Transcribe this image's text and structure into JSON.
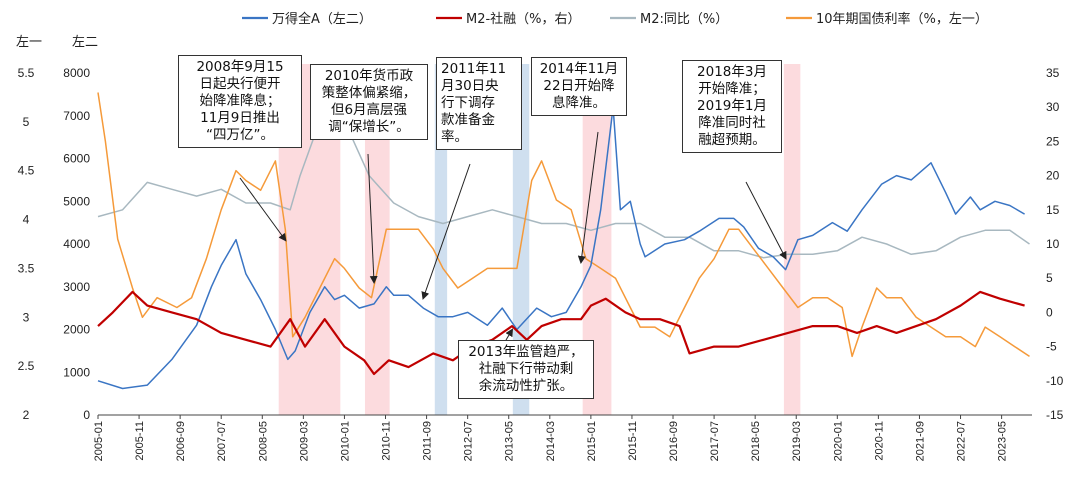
{
  "chart_data": {
    "type": "line",
    "axis_corner_labels": {
      "left_outer": "左一",
      "left_inner": "左二"
    },
    "left1_axis": {
      "ticks": [
        "2",
        "2.5",
        "3",
        "3.5",
        "4",
        "4.5",
        "5",
        "5.5"
      ],
      "ylim": [
        2,
        5.5
      ]
    },
    "left2_axis": {
      "ticks": [
        "0",
        "1000",
        "2000",
        "3000",
        "4000",
        "5000",
        "6000",
        "7000",
        "8000"
      ],
      "ylim": [
        0,
        8000
      ]
    },
    "right_axis": {
      "ticks": [
        "-15",
        "-10",
        "-5",
        "0",
        "5",
        "10",
        "15",
        "20",
        "25",
        "30",
        "35"
      ],
      "ylim": [
        -15,
        35
      ]
    },
    "x_tick_labels": [
      "2005-01",
      "2005-11",
      "2006-09",
      "2007-07",
      "2008-05",
      "2009-03",
      "2010-01",
      "2010-11",
      "2011-09",
      "2012-07",
      "2013-05",
      "2014-03",
      "2015-01",
      "2015-11",
      "2016-09",
      "2017-07",
      "2018-05",
      "2019-03",
      "2020-01",
      "2020-11",
      "2021-09",
      "2022-07",
      "2023-05"
    ],
    "legend": [
      {
        "label": "万得全A（左二）",
        "color": "#3a75c4"
      },
      {
        "label": "M2-社融（%，右）",
        "color": "#c00000"
      },
      {
        "label": "M2:同比（%）",
        "color": "#a8b8c0"
      },
      {
        "label": "10年期国债利率（%，左一）",
        "color": "#f59a3a"
      }
    ],
    "shaded_periods": [
      {
        "start": "2008-09",
        "end": "2009-12",
        "kind": "easing",
        "color": "#fbd5d8"
      },
      {
        "start": "2010-06",
        "end": "2010-12",
        "kind": "easing",
        "color": "#fbd5d8"
      },
      {
        "start": "2011-11",
        "end": "2012-02",
        "kind": "rrr_cut",
        "color": "#c7d9ec"
      },
      {
        "start": "2013-06",
        "end": "2013-10",
        "kind": "rrr_cut",
        "color": "#c7d9ec"
      },
      {
        "start": "2014-11",
        "end": "2015-06",
        "kind": "easing",
        "color": "#fbd5d8"
      },
      {
        "start": "2018-12",
        "end": "2019-04",
        "kind": "easing",
        "color": "#fbd5d8"
      }
    ],
    "series": [
      {
        "name": "万得全A（左二）",
        "axis": "left2",
        "x": [
          2005.0,
          2005.5,
          2006.0,
          2006.5,
          2007.0,
          2007.3,
          2007.5,
          2007.8,
          2008.0,
          2008.3,
          2008.6,
          2008.85,
          2009.0,
          2009.3,
          2009.6,
          2009.8,
          2010.0,
          2010.3,
          2010.6,
          2010.85,
          2011.0,
          2011.3,
          2011.6,
          2011.9,
          2012.2,
          2012.5,
          2012.9,
          2013.2,
          2013.5,
          2013.9,
          2014.2,
          2014.5,
          2014.8,
          2015.0,
          2015.2,
          2015.45,
          2015.6,
          2015.8,
          2016.0,
          2016.1,
          2016.5,
          2016.9,
          2017.2,
          2017.6,
          2017.9,
          2018.1,
          2018.4,
          2018.7,
          2018.95,
          2019.2,
          2019.5,
          2019.9,
          2020.2,
          2020.5,
          2020.9,
          2021.2,
          2021.5,
          2021.9,
          2022.2,
          2022.4,
          2022.7,
          2022.9,
          2023.2,
          2023.5,
          2023.8
        ],
        "values": [
          800,
          620,
          700,
          1300,
          2100,
          3000,
          3500,
          4100,
          3300,
          2700,
          2000,
          1300,
          1500,
          2400,
          3000,
          2700,
          2800,
          2500,
          2600,
          3000,
          2800,
          2800,
          2500,
          2300,
          2300,
          2400,
          2100,
          2500,
          2000,
          2500,
          2300,
          2400,
          3000,
          3500,
          4800,
          7200,
          4800,
          5000,
          4000,
          3700,
          4000,
          4100,
          4300,
          4600,
          4600,
          4400,
          3900,
          3700,
          3400,
          4100,
          4200,
          4500,
          4300,
          4800,
          5400,
          5600,
          5500,
          5900,
          5200,
          4700,
          5100,
          4800,
          5000,
          4900,
          4700
        ]
      },
      {
        "name": "M2-社融（%，右）",
        "axis": "right",
        "x": [
          2005.0,
          2005.3,
          2005.7,
          2006.0,
          2006.5,
          2007.0,
          2007.5,
          2008.0,
          2008.5,
          2008.9,
          2009.2,
          2009.6,
          2010.0,
          2010.4,
          2010.6,
          2010.9,
          2011.3,
          2011.8,
          2012.2,
          2012.6,
          2013.0,
          2013.4,
          2013.7,
          2014.0,
          2014.4,
          2014.8,
          2015.0,
          2015.3,
          2015.7,
          2016.0,
          2016.4,
          2016.8,
          2017.0,
          2017.5,
          2018.0,
          2018.5,
          2019.0,
          2019.5,
          2020.0,
          2020.4,
          2020.8,
          2021.2,
          2021.6,
          2022.0,
          2022.5,
          2022.9,
          2023.3,
          2023.8
        ],
        "values": [
          -2,
          0,
          3,
          1,
          0,
          -1,
          -3,
          -4,
          -5,
          -1,
          -5,
          -1,
          -5,
          -7,
          -9,
          -7,
          -8,
          -6,
          -7,
          -5,
          -4,
          -2,
          -4,
          -2,
          -1,
          -1,
          1,
          2,
          0,
          -1,
          -1,
          -2,
          -6,
          -5,
          -5,
          -4,
          -3,
          -2,
          -2,
          -3,
          -2,
          -3,
          -2,
          -1,
          1,
          3,
          2,
          1
        ]
      },
      {
        "name": "M2:同比（%）",
        "axis": "right",
        "x": [
          2005.0,
          2005.5,
          2006.0,
          2006.5,
          2007.0,
          2007.5,
          2008.0,
          2008.5,
          2008.9,
          2009.1,
          2009.4,
          2009.7,
          2010.0,
          2010.5,
          2011.0,
          2011.5,
          2012.0,
          2012.5,
          2013.0,
          2013.5,
          2014.0,
          2014.5,
          2015.0,
          2015.5,
          2016.0,
          2016.5,
          2017.0,
          2017.5,
          2018.0,
          2018.5,
          2019.0,
          2019.5,
          2020.0,
          2020.5,
          2021.0,
          2021.5,
          2022.0,
          2022.5,
          2023.0,
          2023.5,
          2023.9
        ],
        "values": [
          14,
          15,
          19,
          18,
          17,
          18,
          16,
          16,
          15,
          20,
          26,
          29,
          28,
          20,
          16,
          14,
          13,
          14,
          15,
          14,
          13,
          13,
          12,
          13,
          13,
          11,
          11,
          9,
          9,
          8,
          8.5,
          8.5,
          9,
          11,
          10,
          8.5,
          9,
          11,
          12,
          12,
          10
        ]
      },
      {
        "name": "10年期国债利率（%，左一）",
        "axis": "left1",
        "x": [
          2005.0,
          2005.15,
          2005.4,
          2005.7,
          2005.9,
          2006.2,
          2006.6,
          2006.9,
          2007.2,
          2007.5,
          2007.8,
          2008.0,
          2008.3,
          2008.6,
          2008.8,
          2008.95,
          2009.2,
          2009.5,
          2009.8,
          2010.0,
          2010.3,
          2010.55,
          2010.85,
          2011.1,
          2011.5,
          2011.8,
          2012.0,
          2012.3,
          2012.6,
          2012.9,
          2013.2,
          2013.5,
          2013.8,
          2014.0,
          2014.3,
          2014.6,
          2014.9,
          2015.2,
          2015.5,
          2015.8,
          2016.0,
          2016.3,
          2016.6,
          2016.9,
          2017.2,
          2017.5,
          2017.8,
          2018.0,
          2018.3,
          2018.6,
          2018.9,
          2019.2,
          2019.5,
          2019.8,
          2020.1,
          2020.3,
          2020.5,
          2020.8,
          2021.0,
          2021.3,
          2021.6,
          2021.9,
          2022.2,
          2022.5,
          2022.8,
          2023.0,
          2023.3,
          2023.6,
          2023.9
        ],
        "values": [
          5.3,
          4.8,
          3.8,
          3.3,
          3.0,
          3.2,
          3.1,
          3.2,
          3.6,
          4.1,
          4.5,
          4.4,
          4.3,
          4.6,
          3.9,
          2.8,
          3.0,
          3.3,
          3.6,
          3.5,
          3.3,
          3.2,
          3.9,
          3.9,
          3.9,
          3.7,
          3.5,
          3.3,
          3.4,
          3.5,
          3.5,
          3.5,
          4.4,
          4.6,
          4.2,
          4.1,
          3.6,
          3.5,
          3.4,
          3.1,
          2.9,
          2.9,
          2.8,
          3.1,
          3.4,
          3.6,
          3.9,
          3.9,
          3.7,
          3.5,
          3.3,
          3.1,
          3.2,
          3.2,
          3.1,
          2.6,
          2.9,
          3.3,
          3.2,
          3.2,
          3.0,
          2.9,
          2.8,
          2.8,
          2.7,
          2.9,
          2.8,
          2.7,
          2.6
        ]
      }
    ]
  },
  "annotations": [
    {
      "lines": [
        "2008年9月15",
        "日起央行便开",
        "始降准降息；",
        "11月9日推出",
        "“四万亿”。"
      ]
    },
    {
      "lines": [
        "2010年货币政",
        "策整体偏紧缩，",
        "但6月高层强",
        "调“保增长”。"
      ]
    },
    {
      "lines": [
        "2011年11",
        "月30日央",
        "行下调存",
        "款准备金",
        "率。"
      ]
    },
    {
      "lines": [
        "2014年11月",
        "22日开始降",
        "息降准。"
      ]
    },
    {
      "lines": [
        "2018年3月",
        "开始降准；",
        "2019年1月",
        "降准同时社",
        "融超预期。"
      ]
    },
    {
      "lines": [
        "2013年监管趋严，",
        "社融下行带动剩",
        "余流动性扩张。"
      ]
    }
  ]
}
